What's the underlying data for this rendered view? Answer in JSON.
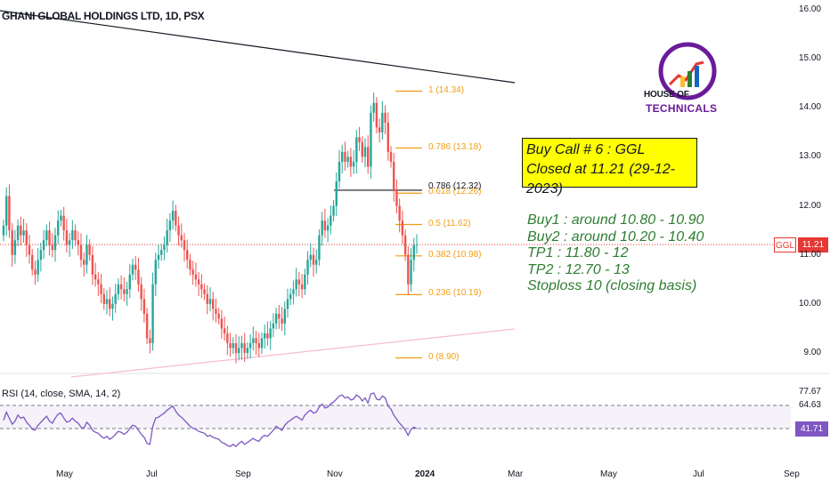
{
  "header": {
    "symbol": "GHANI GLOBAL HOLDINGS LTD, 1D, PSX"
  },
  "rsi_header": {
    "label": "RSI (14, close, SMA, 14, 2)"
  },
  "logo": {
    "line1": "HOUSE OF",
    "line2": "TECHNICALS"
  },
  "callout": {
    "line1": "Buy Call # 6 : GGL",
    "line2": "Closed at 11.21 (29-12-2023)"
  },
  "plan": [
    "Buy1 : around 10.80 - 10.90",
    "Buy2 : around 10.20 - 10.40",
    "TP1 : 11.80 - 12",
    "TP2 : 12.70 - 13",
    "Stoploss 10 (closing basis)"
  ],
  "price_tag": {
    "ticker": "GGL",
    "value": "11.21"
  },
  "rsi_tag": {
    "value": "41.71"
  },
  "colors": {
    "up": "#26a69a",
    "down": "#ef5350",
    "fib": "#f39c12",
    "rsi_line": "#7e57c2",
    "price_line": "#e53935",
    "plan_text": "#2e7d32"
  },
  "chart_data": {
    "type": "candlestick",
    "price_axis_ticks": [
      "16.00",
      "15.00",
      "14.00",
      "13.00",
      "12.00",
      "11.00",
      "10.00",
      "9.00"
    ],
    "rsi_axis_ticks": [
      "77.67",
      "64.63",
      "41.71"
    ],
    "time_axis_ticks": [
      "May",
      "Jul",
      "Sep",
      "Nov",
      "2024",
      "Mar",
      "May",
      "Jul",
      "Sep"
    ],
    "fib_levels": [
      {
        "label": "1 (14.34)",
        "value": 14.34
      },
      {
        "label": "0.786 (13.18)",
        "value": 13.18
      },
      {
        "label": "0.618 (12.26)",
        "value": 12.26
      },
      {
        "label": "0.5 (11.62)",
        "value": 11.62
      },
      {
        "label": "0.382 (10.98)",
        "value": 10.98
      },
      {
        "label": "0.236 (10.19)",
        "value": 10.19
      },
      {
        "label": "0 (8.90)",
        "value": 8.9
      }
    ],
    "extra_fib": {
      "label": "0.786 (12.32)",
      "value": 12.32
    },
    "last_price": 11.21,
    "price_ylim": [
      8.6,
      16.2
    ],
    "rsi_ylim": [
      20,
      85
    ],
    "rsi_bands": [
      64.63,
      41.71
    ],
    "close_series": [
      11.6,
      12.2,
      11.5,
      11.0,
      11.3,
      11.6,
      11.4,
      11.5,
      11.2,
      11.0,
      10.7,
      10.6,
      10.9,
      11.1,
      11.3,
      11.5,
      11.2,
      11.1,
      11.4,
      11.7,
      11.8,
      11.5,
      11.2,
      11.3,
      11.5,
      11.3,
      11.2,
      10.9,
      10.8,
      11.2,
      11.0,
      10.6,
      10.5,
      10.4,
      10.2,
      10.0,
      10.1,
      9.9,
      10.0,
      10.2,
      10.4,
      10.3,
      10.2,
      10.3,
      10.6,
      10.8,
      10.7,
      10.4,
      10.1,
      9.8,
      9.3,
      9.2,
      10.4,
      10.9,
      11.0,
      11.1,
      11.2,
      11.5,
      11.7,
      11.9,
      11.6,
      11.4,
      11.3,
      11.1,
      10.9,
      10.7,
      10.6,
      10.5,
      10.4,
      10.3,
      10.2,
      10.0,
      10.1,
      9.9,
      9.8,
      9.7,
      9.5,
      9.4,
      9.2,
      9.1,
      9.2,
      9.0,
      9.1,
      9.2,
      9.0,
      9.1,
      9.2,
      9.3,
      9.2,
      9.1,
      9.3,
      9.4,
      9.3,
      9.5,
      9.6,
      9.8,
      9.7,
      9.6,
      9.9,
      10.1,
      10.2,
      10.3,
      10.5,
      10.4,
      10.3,
      10.6,
      10.9,
      11.0,
      10.8,
      10.9,
      11.4,
      11.7,
      11.5,
      11.6,
      11.8,
      12.0,
      12.5,
      12.9,
      13.1,
      12.9,
      13.0,
      12.8,
      12.9,
      13.4,
      13.3,
      13.0,
      13.2,
      12.8,
      13.9,
      14.1,
      13.6,
      13.5,
      13.9,
      13.7,
      13.1,
      12.9,
      12.3,
      12.0,
      11.7,
      11.4,
      11.0,
      10.4,
      10.9,
      11.2,
      11.21
    ],
    "rsi_series": [
      50,
      58,
      52,
      46,
      49,
      55,
      52,
      53,
      48,
      45,
      41,
      40,
      45,
      48,
      51,
      54,
      49,
      47,
      52,
      56,
      57,
      52,
      48,
      49,
      52,
      49,
      47,
      43,
      42,
      48,
      45,
      40,
      38,
      37,
      34,
      32,
      34,
      31,
      33,
      36,
      39,
      38,
      36,
      38,
      42,
      45,
      44,
      40,
      36,
      33,
      27,
      26,
      44,
      52,
      53,
      55,
      57,
      60,
      62,
      64,
      59,
      55,
      53,
      50,
      47,
      44,
      42,
      41,
      39,
      38,
      37,
      34,
      35,
      33,
      32,
      31,
      28,
      27,
      25,
      24,
      26,
      24,
      27,
      29,
      26,
      28,
      30,
      32,
      30,
      29,
      33,
      35,
      34,
      37,
      40,
      44,
      42,
      40,
      45,
      48,
      50,
      52,
      54,
      52,
      50,
      55,
      58,
      60,
      57,
      58,
      63,
      66,
      62,
      63,
      66,
      68,
      71,
      74,
      75,
      72,
      73,
      70,
      71,
      75,
      73,
      69,
      72,
      67,
      76,
      77,
      71,
      70,
      74,
      72,
      64,
      61,
      55,
      51,
      47,
      44,
      40,
      35,
      41,
      43,
      41.71
    ]
  }
}
